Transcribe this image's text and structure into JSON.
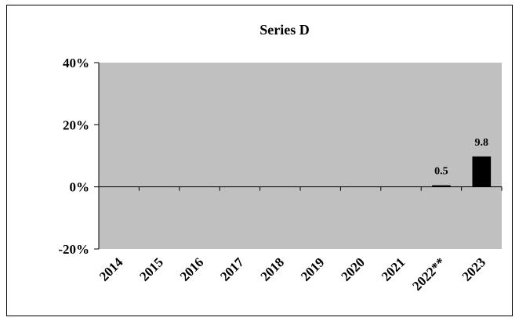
{
  "chart_data": {
    "type": "bar",
    "title": "Series D",
    "xlabel": "",
    "ylabel": "",
    "categories": [
      "2014",
      "2015",
      "2016",
      "2017",
      "2018",
      "2019",
      "2020",
      "2021",
      "2022**",
      "2023"
    ],
    "values": [
      null,
      null,
      null,
      null,
      null,
      null,
      null,
      null,
      0.5,
      9.8
    ],
    "data_labels": [
      "",
      "",
      "",
      "",
      "",
      "",
      "",
      "",
      "0.5",
      "9.8"
    ],
    "ylim": [
      -20,
      40
    ],
    "yticks": [
      -20,
      0,
      20,
      40
    ],
    "ytick_labels": [
      "-20%",
      "0%",
      "20%",
      "40%"
    ],
    "plot_background": "#c0c0c0",
    "bar_color": "#000000",
    "grid": false,
    "legend": "none"
  }
}
